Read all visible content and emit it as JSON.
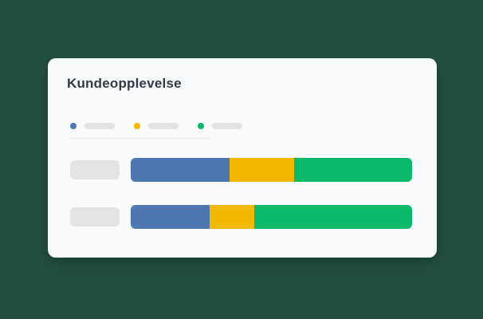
{
  "page": {
    "background_color": "#21503e"
  },
  "card": {
    "title": "Kundeopplevelse",
    "background_color": "#f9fafb",
    "title_color": "#323a45"
  },
  "colors": {
    "placeholder_gray": "#e3e4e6",
    "divider": "#e7e8ea"
  },
  "chart_data": {
    "type": "bar",
    "orientation": "horizontal",
    "stacked": true,
    "title": "Kundeopplevelse",
    "legend_position": "top-left",
    "legend_labels_placeholder": true,
    "category_labels_placeholder": true,
    "grid": false,
    "unit": "percent",
    "xlim": [
      0,
      100
    ],
    "categories": [
      "",
      ""
    ],
    "series": [
      {
        "name": "",
        "color": "#4f77b2",
        "values": [
          35,
          28
        ]
      },
      {
        "name": "",
        "color": "#f3b700",
        "values": [
          23,
          16
        ]
      },
      {
        "name": "",
        "color": "#0cb96a",
        "values": [
          42,
          56
        ]
      }
    ]
  }
}
